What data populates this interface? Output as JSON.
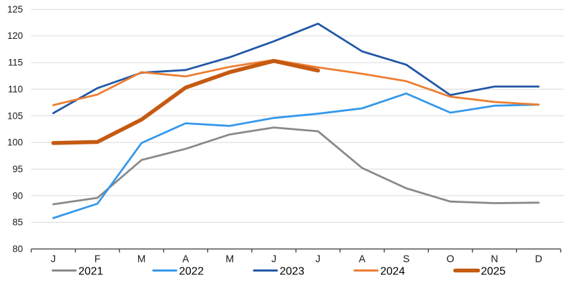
{
  "chart_data": {
    "type": "line",
    "title": "",
    "categories": [
      "J",
      "F",
      "M",
      "A",
      "M",
      "J",
      "J",
      "A",
      "S",
      "O",
      "N",
      "D"
    ],
    "y_axis": {
      "min": 80,
      "max": 125,
      "step": 5,
      "tick_labels": [
        "80",
        "85",
        "90",
        "95",
        "100",
        "105",
        "110",
        "115",
        "120",
        "125"
      ]
    },
    "x_axis": {
      "label": "",
      "tick_count": 13
    },
    "grid": "horizontal",
    "legend_position": "bottom",
    "colors": {
      "background": "#ffffff",
      "gridline": "#d9d9d9",
      "axis": "#333333",
      "text": "#1a1a1a"
    },
    "series": [
      {
        "name": "2021",
        "color": "#898989",
        "line_width": 2.8,
        "values": [
          88.4,
          89.6,
          96.7,
          98.8,
          101.5,
          102.8,
          102.1,
          95.2,
          91.4,
          88.9,
          88.6,
          88.7
        ]
      },
      {
        "name": "2022",
        "color": "#3498eb",
        "line_width": 2.8,
        "values": [
          85.8,
          88.5,
          99.9,
          103.6,
          103.1,
          104.6,
          105.4,
          106.4,
          109.2,
          105.6,
          106.9,
          107.1
        ]
      },
      {
        "name": "2023",
        "color": "#2057a7",
        "line_width": 2.8,
        "values": [
          105.5,
          110.2,
          113.1,
          113.6,
          116.0,
          119.0,
          122.3,
          117.1,
          114.6,
          108.9,
          110.5,
          110.5
        ]
      },
      {
        "name": "2024",
        "color": "#ed7d31",
        "line_width": 2.8,
        "values": [
          107.0,
          109.0,
          113.2,
          112.4,
          114.2,
          115.5,
          114.1,
          112.9,
          111.5,
          108.6,
          107.6,
          107.1
        ]
      },
      {
        "name": "2025",
        "color": "#c55a11",
        "line_width": 5.6,
        "values": [
          99.9,
          100.1,
          104.3,
          110.3,
          113.2,
          115.3,
          113.5,
          null,
          null,
          null,
          null,
          null
        ]
      }
    ]
  }
}
